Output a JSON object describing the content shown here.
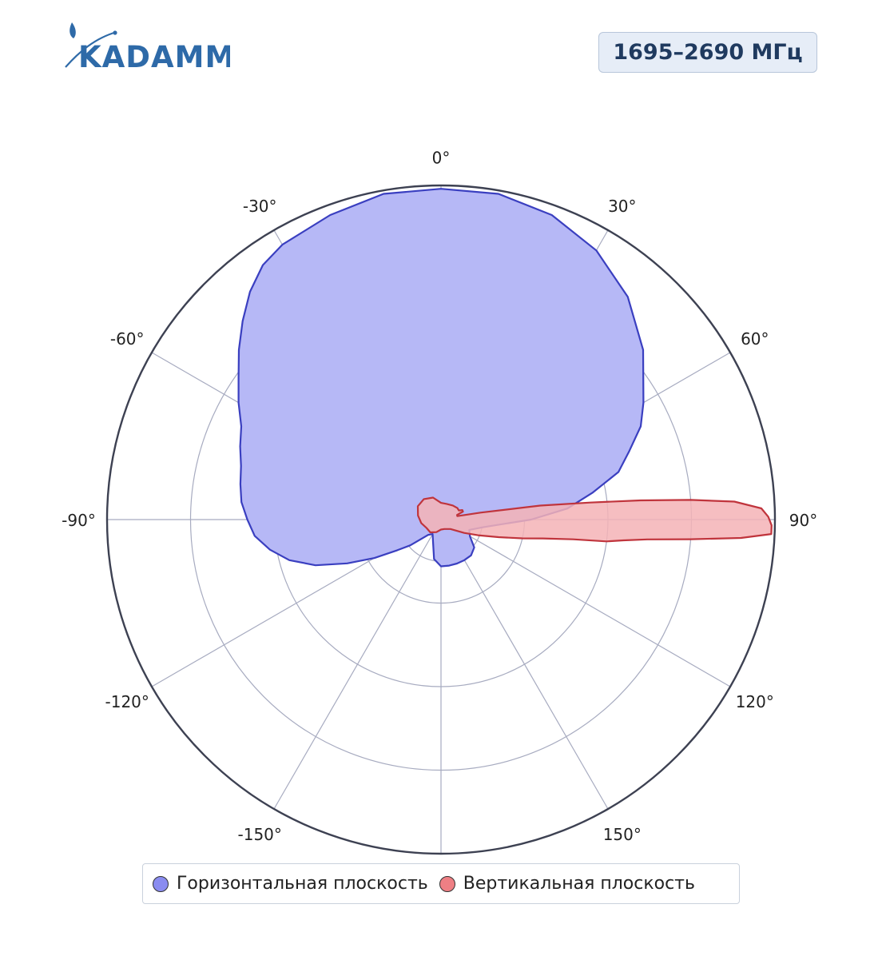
{
  "header": {
    "logo_text": "KADAMM",
    "band": "1695–2690 МГц"
  },
  "colors": {
    "horizontal_fill": "#b6b8f6",
    "horizontal_line": "#3a3fc0",
    "horizontal_swatch": "#8a8cf0",
    "vertical_fill": "#f4b3b6",
    "vertical_line": "#c0343c",
    "vertical_swatch": "#ee7f84",
    "grid": "#a7abc0",
    "outer_ring": "#3d4152",
    "logo": "#2e6aa8"
  },
  "chart_data": {
    "type": "polar-area",
    "angle_ticks": [
      {
        "angle": 0,
        "label": "0°"
      },
      {
        "angle": 30,
        "label": "30°"
      },
      {
        "angle": 60,
        "label": "60°"
      },
      {
        "angle": 90,
        "label": "90°"
      },
      {
        "angle": 120,
        "label": "120°"
      },
      {
        "angle": 150,
        "label": "150°"
      },
      {
        "angle": -30,
        "label": "-30°"
      },
      {
        "angle": -60,
        "label": "-60°"
      },
      {
        "angle": -90,
        "label": "-90°"
      },
      {
        "angle": -120,
        "label": "-120°"
      },
      {
        "angle": -150,
        "label": "-150°"
      }
    ],
    "radial_range": [
      0,
      1
    ],
    "radial_rings": [
      0.125,
      0.25,
      0.5,
      0.75,
      1.0
    ],
    "grid": true,
    "legend_position": "bottom",
    "series": [
      {
        "name": "Горизонтальная плоскость",
        "points": [
          [
            0,
            0.99
          ],
          [
            10,
            0.99
          ],
          [
            20,
            0.97
          ],
          [
            30,
            0.93
          ],
          [
            40,
            0.87
          ],
          [
            50,
            0.79
          ],
          [
            60,
            0.7
          ],
          [
            65,
            0.66
          ],
          [
            70,
            0.6
          ],
          [
            75,
            0.55
          ],
          [
            80,
            0.46
          ],
          [
            85,
            0.38
          ],
          [
            90,
            0.27
          ],
          [
            100,
            0.13
          ],
          [
            110,
            0.09
          ],
          [
            120,
            0.1
          ],
          [
            130,
            0.13
          ],
          [
            140,
            0.14
          ],
          [
            150,
            0.14
          ],
          [
            160,
            0.14
          ],
          [
            170,
            0.14
          ],
          [
            180,
            0.14
          ],
          [
            190,
            0.12
          ],
          [
            200,
            0.07
          ],
          [
            210,
            0.05
          ],
          [
            220,
            0.06
          ],
          [
            225,
            0.08
          ],
          [
            230,
            0.12
          ],
          [
            235,
            0.16
          ],
          [
            240,
            0.23
          ],
          [
            245,
            0.31
          ],
          [
            250,
            0.4
          ],
          [
            255,
            0.47
          ],
          [
            260,
            0.52
          ],
          [
            265,
            0.56
          ],
          [
            270,
            0.58
          ],
          [
            275,
            0.6
          ],
          [
            280,
            0.61
          ],
          [
            285,
            0.62
          ],
          [
            290,
            0.64
          ],
          [
            295,
            0.66
          ],
          [
            300,
            0.7
          ],
          [
            305,
            0.74
          ],
          [
            310,
            0.79
          ],
          [
            315,
            0.84
          ],
          [
            320,
            0.89
          ],
          [
            325,
            0.93
          ],
          [
            330,
            0.95
          ],
          [
            340,
            0.97
          ],
          [
            350,
            0.99
          ],
          [
            360,
            0.99
          ]
        ]
      },
      {
        "name": "Вертикальная плоскость",
        "points": [
          [
            0,
            0.05
          ],
          [
            20,
            0.05
          ],
          [
            40,
            0.055
          ],
          [
            55,
            0.06
          ],
          [
            63,
            0.06
          ],
          [
            66,
            0.07
          ],
          [
            70,
            0.07
          ],
          [
            74,
            0.05
          ],
          [
            78,
            0.05
          ],
          [
            80,
            0.12
          ],
          [
            82,
            0.3
          ],
          [
            83.5,
            0.45
          ],
          [
            84.5,
            0.6
          ],
          [
            85.5,
            0.75
          ],
          [
            86.5,
            0.88
          ],
          [
            88,
            0.96
          ],
          [
            89.5,
            0.98
          ],
          [
            91,
            0.99
          ],
          [
            92.5,
            0.99
          ],
          [
            93.5,
            0.9
          ],
          [
            94.5,
            0.75
          ],
          [
            95.5,
            0.62
          ],
          [
            96.5,
            0.55
          ],
          [
            97.5,
            0.5
          ],
          [
            98.5,
            0.4
          ],
          [
            100.5,
            0.31
          ],
          [
            103,
            0.25
          ],
          [
            107,
            0.18
          ],
          [
            113,
            0.12
          ],
          [
            120,
            0.08
          ],
          [
            135,
            0.04
          ],
          [
            160,
            0.03
          ],
          [
            180,
            0.03
          ],
          [
            200,
            0.04
          ],
          [
            220,
            0.05
          ],
          [
            240,
            0.05
          ],
          [
            260,
            0.06
          ],
          [
            280,
            0.07
          ],
          [
            300,
            0.08
          ],
          [
            320,
            0.08
          ],
          [
            340,
            0.07
          ],
          [
            360,
            0.05
          ]
        ]
      }
    ]
  }
}
